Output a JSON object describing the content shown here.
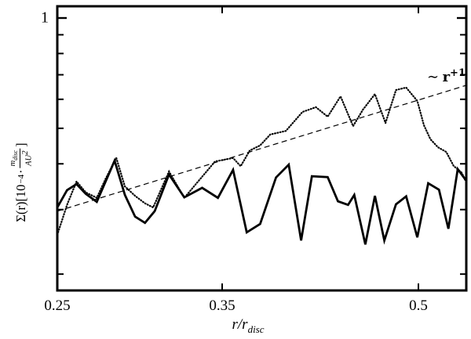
{
  "figure": {
    "background": "#ffffff",
    "ink_color": "#000000"
  },
  "y_axis": {
    "major_tick_label": "1",
    "label_parts": {
      "prefix": "Σ(r)[10",
      "exponent": "−4",
      "dot": "·",
      "frac_num_main": "m",
      "frac_num_sub": "disc",
      "frac_den_main": "AU",
      "frac_den_sup": "2",
      "suffix": "]"
    }
  },
  "x_axis": {
    "label_parts": {
      "main": "r/r",
      "sub": "disc"
    }
  },
  "annotation": {
    "tilde": "∼ ",
    "base": "r",
    "sup": "+1"
  },
  "chart_data": {
    "type": "line",
    "title": "",
    "xlabel": "r/r_disc",
    "ylabel": "Sigma(r) [10^-4 m_disc/AU^2]",
    "x_scale": "log",
    "y_scale": "log",
    "xlim": [
      0.25,
      0.5455
    ],
    "ylim": [
      0.18,
      1.08
    ],
    "grid": false,
    "legend": "none",
    "x_ticks": [
      {
        "label": "0.25",
        "value": 0.25
      },
      {
        "label": "0.35",
        "value": 0.35
      },
      {
        "label": "0.5",
        "value": 0.5
      }
    ],
    "y_major_ticks": [
      {
        "label": "1",
        "value": 1
      }
    ],
    "y_minor_ticks": [
      0.9,
      0.8,
      0.7,
      0.6,
      0.5,
      0.4,
      0.3,
      0.2
    ],
    "series": [
      {
        "name": "surface-density-dotted",
        "style": "dotted",
        "x": [
          0.25,
          0.255,
          0.26,
          0.265,
          0.271,
          0.276,
          0.282,
          0.287,
          0.293,
          0.299,
          0.304,
          0.314,
          0.324,
          0.335,
          0.345,
          0.357,
          0.362,
          0.368,
          0.375,
          0.382,
          0.393,
          0.405,
          0.415,
          0.424,
          0.434,
          0.444,
          0.452,
          0.462,
          0.471,
          0.48,
          0.489,
          0.499,
          0.505,
          0.511,
          0.518,
          0.526,
          0.533,
          0.541,
          0.545
        ],
        "y": [
          0.256,
          0.309,
          0.358,
          0.334,
          0.323,
          0.365,
          0.415,
          0.347,
          0.327,
          0.312,
          0.304,
          0.381,
          0.323,
          0.365,
          0.406,
          0.415,
          0.394,
          0.435,
          0.449,
          0.481,
          0.492,
          0.554,
          0.571,
          0.538,
          0.611,
          0.507,
          0.562,
          0.62,
          0.517,
          0.636,
          0.646,
          0.594,
          0.51,
          0.467,
          0.444,
          0.431,
          0.395,
          0.378,
          0.358
        ]
      },
      {
        "name": "surface-density-solid",
        "style": "solid",
        "x": [
          0.25,
          0.255,
          0.26,
          0.265,
          0.271,
          0.276,
          0.281,
          0.287,
          0.293,
          0.299,
          0.305,
          0.314,
          0.324,
          0.336,
          0.347,
          0.357,
          0.366,
          0.375,
          0.386,
          0.395,
          0.404,
          0.412,
          0.424,
          0.432,
          0.44,
          0.445,
          0.454,
          0.462,
          0.47,
          0.48,
          0.489,
          0.499,
          0.509,
          0.519,
          0.528,
          0.537,
          0.545
        ],
        "y": [
          0.304,
          0.339,
          0.352,
          0.331,
          0.315,
          0.359,
          0.408,
          0.329,
          0.287,
          0.276,
          0.297,
          0.374,
          0.324,
          0.344,
          0.323,
          0.385,
          0.26,
          0.274,
          0.367,
          0.398,
          0.247,
          0.37,
          0.368,
          0.316,
          0.309,
          0.329,
          0.241,
          0.327,
          0.247,
          0.31,
          0.326,
          0.252,
          0.354,
          0.34,
          0.266,
          0.387,
          0.361
        ]
      },
      {
        "name": "power-law-trend",
        "style": "dashed",
        "label": "~ r^+1",
        "x": [
          0.25,
          0.5454
        ],
        "y": [
          0.297,
          0.655
        ]
      }
    ]
  }
}
